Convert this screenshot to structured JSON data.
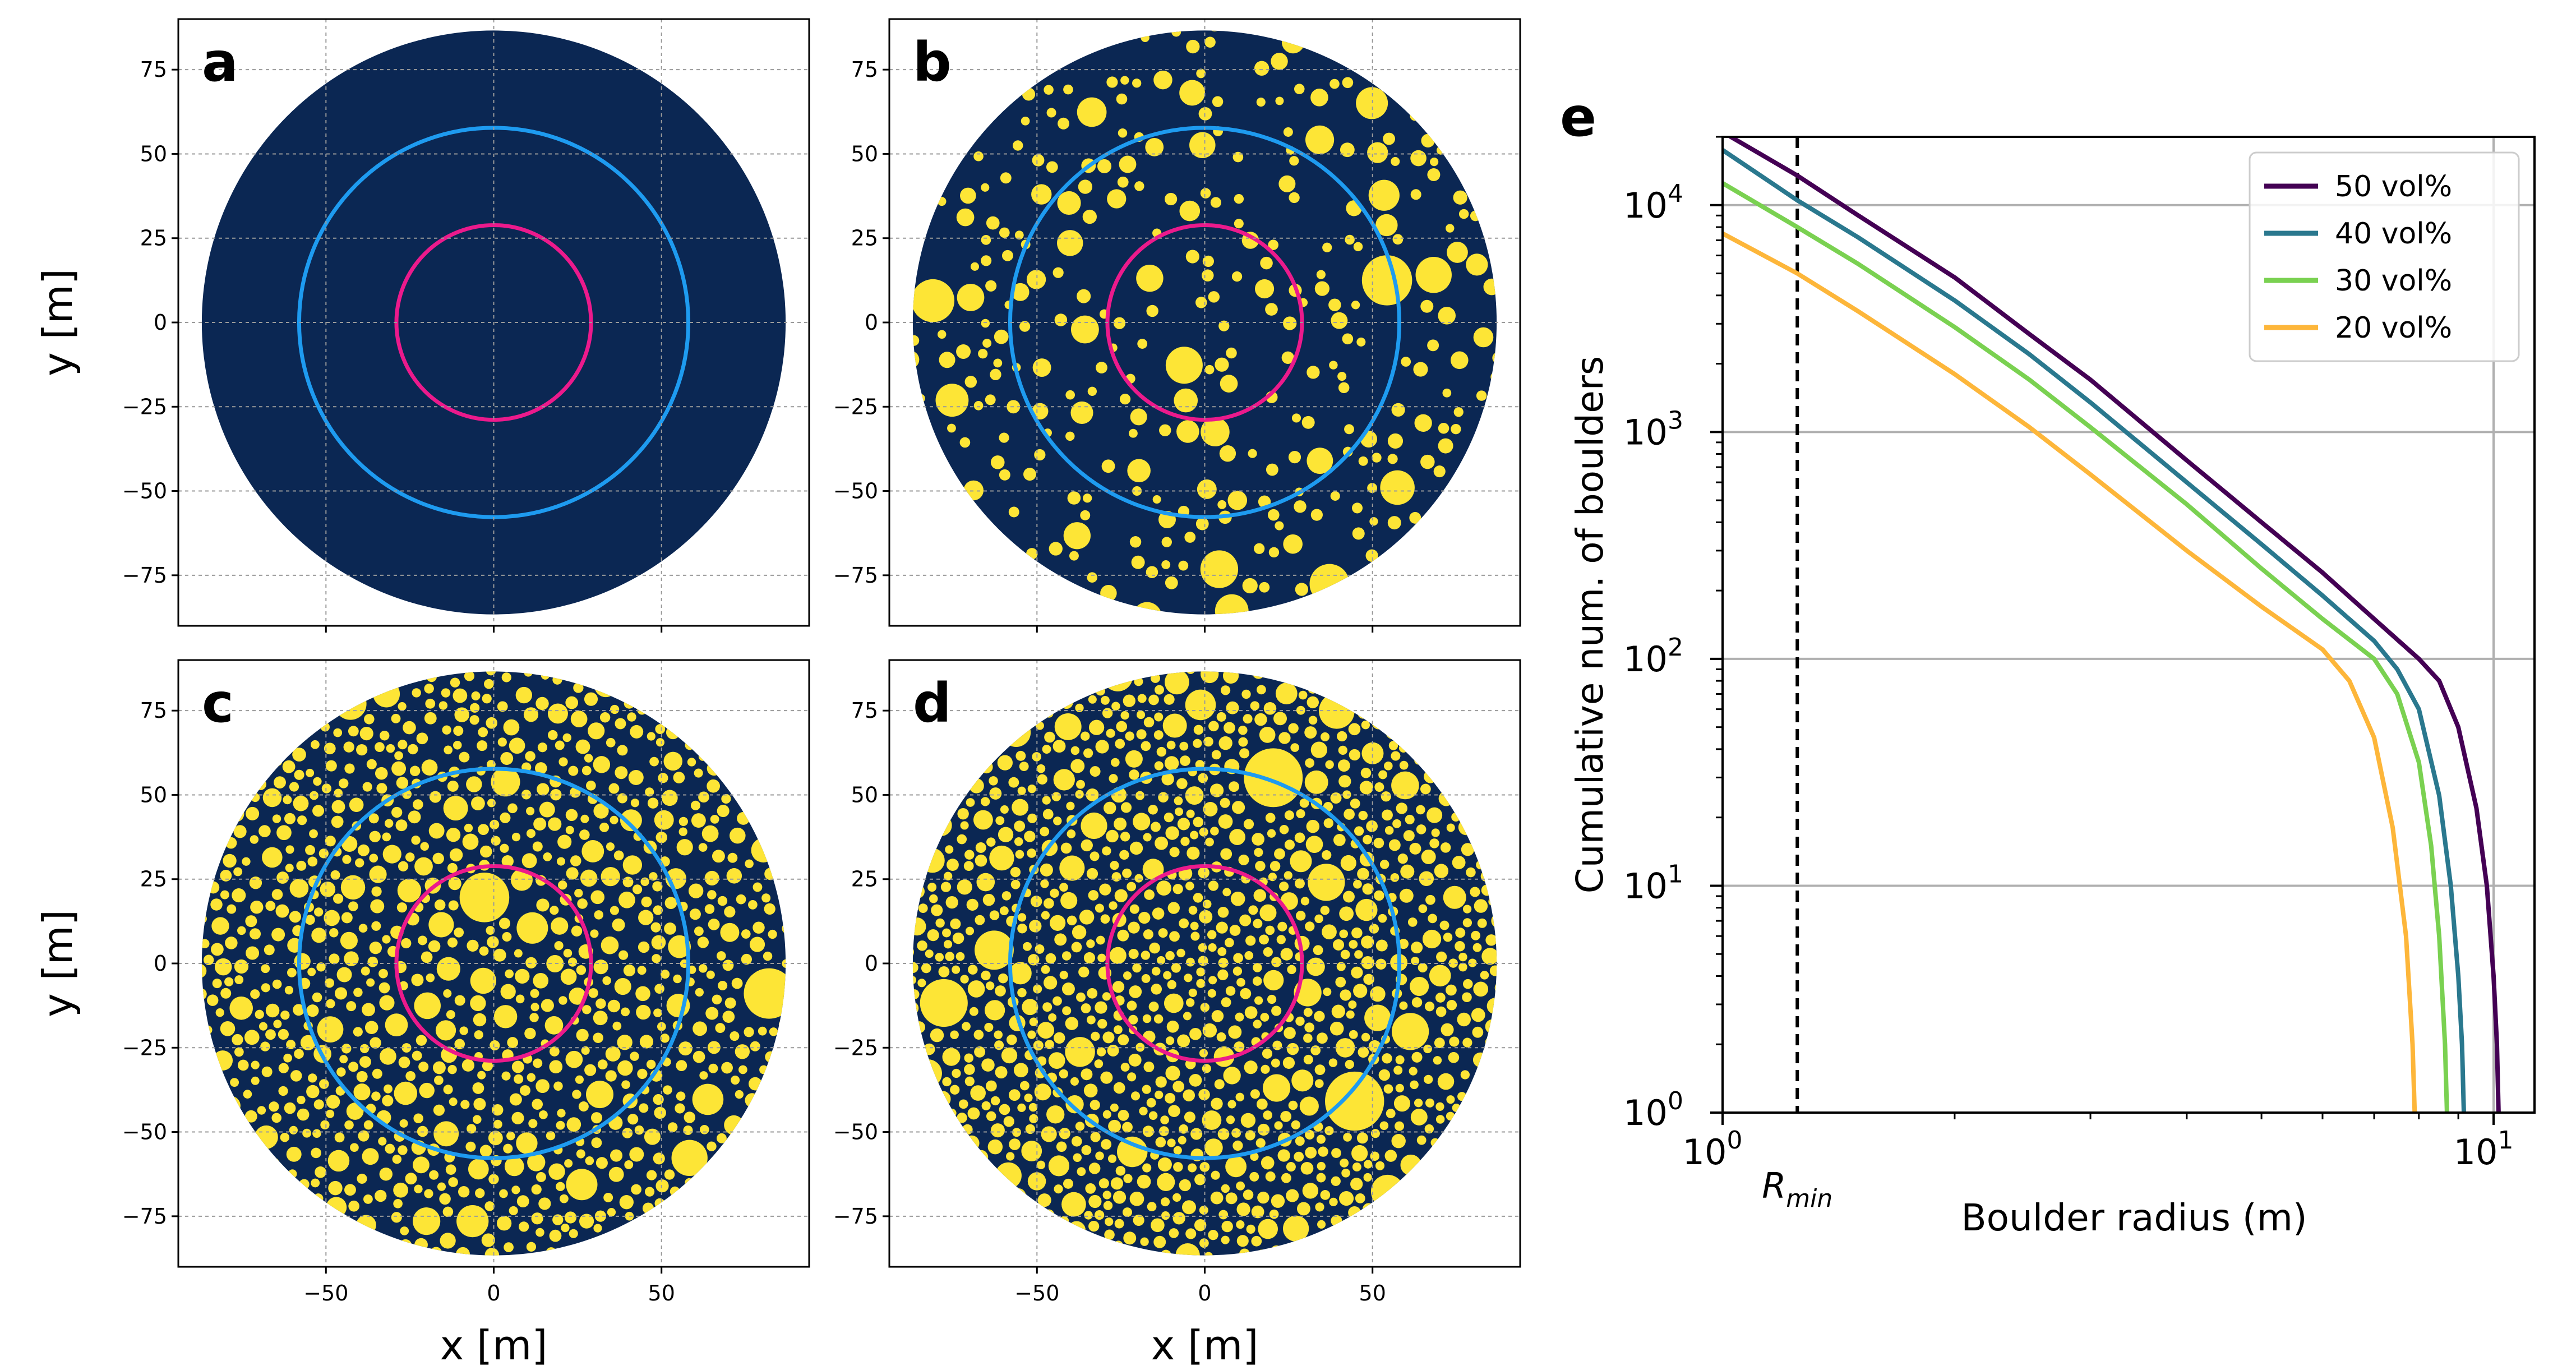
{
  "colors": {
    "background": "#0b2753",
    "boulder": "#fde536",
    "outer_contour": "#1e9bf0",
    "inner_contour": "#ec1a8c",
    "grid": "#9a9a9a",
    "rmin_line": "#000000"
  },
  "chart_data": [
    {
      "type": "scatter",
      "panel": "a",
      "title": "a",
      "xlabel": "",
      "ylabel": "y [m]",
      "xlim": [
        -94,
        94
      ],
      "ylim": [
        -90,
        90
      ],
      "xticks": [
        -50,
        0,
        50
      ],
      "xtick_labels": [],
      "yticks": [
        75,
        50,
        25,
        0,
        -25,
        -50,
        -75
      ],
      "ytick_labels": [
        "75",
        "50",
        "25",
        "0",
        "−25",
        "−50",
        "−75"
      ],
      "domain_radius_m": 87,
      "contours": [
        {
          "name": "outer",
          "radius_m": 58,
          "color": "#1e9bf0"
        },
        {
          "name": "inner",
          "radius_m": 29,
          "color": "#ec1a8c"
        }
      ],
      "boulder_fraction": 0,
      "grid": true
    },
    {
      "type": "scatter",
      "panel": "b",
      "title": "b",
      "xlabel": "",
      "ylabel": "",
      "xlim": [
        -94,
        94
      ],
      "ylim": [
        -90,
        90
      ],
      "xticks": [
        -50,
        0,
        50
      ],
      "xtick_labels": [],
      "yticks": [
        75,
        50,
        25,
        0,
        -25,
        -50,
        -75
      ],
      "ytick_labels": [
        "75",
        "50",
        "25",
        "0",
        "−25",
        "−50",
        "−75"
      ],
      "domain_radius_m": 87,
      "contours": [
        {
          "name": "outer",
          "radius_m": 58,
          "color": "#1e9bf0"
        },
        {
          "name": "inner",
          "radius_m": 29,
          "color": "#ec1a8c"
        }
      ],
      "boulder_fraction": 0.2,
      "grid": true
    },
    {
      "type": "scatter",
      "panel": "c",
      "title": "c",
      "xlabel": "x [m]",
      "ylabel": "y [m]",
      "xlim": [
        -94,
        94
      ],
      "ylim": [
        -90,
        90
      ],
      "xticks": [
        -50,
        0,
        50
      ],
      "xtick_labels": [
        "−50",
        "0",
        "50"
      ],
      "yticks": [
        75,
        50,
        25,
        0,
        -25,
        -50,
        -75
      ],
      "ytick_labels": [
        "75",
        "50",
        "25",
        "0",
        "−25",
        "−50",
        "−75"
      ],
      "domain_radius_m": 87,
      "contours": [
        {
          "name": "outer",
          "radius_m": 58,
          "color": "#1e9bf0"
        },
        {
          "name": "inner",
          "radius_m": 29,
          "color": "#ec1a8c"
        }
      ],
      "boulder_fraction": 0.4,
      "grid": true
    },
    {
      "type": "scatter",
      "panel": "d",
      "title": "d",
      "xlabel": "x [m]",
      "ylabel": "",
      "xlim": [
        -94,
        94
      ],
      "ylim": [
        -90,
        90
      ],
      "xticks": [
        -50,
        0,
        50
      ],
      "xtick_labels": [
        "−50",
        "0",
        "50"
      ],
      "yticks": [
        75,
        50,
        25,
        0,
        -25,
        -50,
        -75
      ],
      "ytick_labels": [
        "75",
        "50",
        "25",
        "0",
        "−25",
        "−50",
        "−75"
      ],
      "domain_radius_m": 87,
      "contours": [
        {
          "name": "outer",
          "radius_m": 58,
          "color": "#1e9bf0"
        },
        {
          "name": "inner",
          "radius_m": 29,
          "color": "#ec1a8c"
        }
      ],
      "boulder_fraction": 0.5,
      "grid": true
    },
    {
      "type": "line",
      "panel": "e",
      "title": "e",
      "xlabel": "Boulder radius (m)",
      "ylabel": "Cumulative num. of boulders",
      "xscale": "log",
      "yscale": "log",
      "xlim": [
        1,
        11.3
      ],
      "ylim": [
        1,
        20000
      ],
      "xticks": [
        1,
        10
      ],
      "xtick_labels": [
        {
          "base": "10",
          "exp": "0"
        },
        {
          "base": "10",
          "exp": "1"
        }
      ],
      "yticks": [
        1,
        10,
        100,
        1000,
        10000
      ],
      "ytick_labels": [
        {
          "base": "10",
          "exp": "0"
        },
        {
          "base": "10",
          "exp": "1"
        },
        {
          "base": "10",
          "exp": "2"
        },
        {
          "base": "10",
          "exp": "3"
        },
        {
          "base": "10",
          "exp": "4"
        }
      ],
      "grid": "y-major",
      "vline": {
        "x": 1.25,
        "label_base": "R",
        "label_sub": "min",
        "style": "dashed"
      },
      "legend_position": "top-right",
      "series": [
        {
          "name": "50 vol%",
          "color": "#440154",
          "x": [
            1.0,
            1.25,
            1.5,
            2.0,
            2.5,
            3.0,
            4.0,
            5.0,
            6.0,
            7.0,
            8.0,
            8.5,
            9.0,
            9.5,
            9.8,
            10.0,
            10.1,
            10.15
          ],
          "y": [
            21000,
            13500,
            9000,
            4800,
            2700,
            1700,
            750,
            400,
            240,
            150,
            100,
            80,
            50,
            22,
            10,
            4,
            2,
            1
          ]
        },
        {
          "name": "40 vol%",
          "color": "#2a788e",
          "x": [
            1.0,
            1.25,
            1.5,
            2.0,
            2.5,
            3.0,
            4.0,
            5.0,
            6.0,
            7.0,
            7.5,
            8.0,
            8.5,
            8.8,
            9.0,
            9.1,
            9.15
          ],
          "y": [
            17500,
            10500,
            7200,
            3800,
            2200,
            1350,
            600,
            320,
            190,
            120,
            90,
            60,
            25,
            10,
            4,
            2,
            1
          ]
        },
        {
          "name": "30 vol%",
          "color": "#7ad151",
          "x": [
            1.0,
            1.25,
            1.5,
            2.0,
            2.5,
            3.0,
            4.0,
            5.0,
            6.0,
            7.0,
            7.5,
            8.0,
            8.3,
            8.5,
            8.65,
            8.7
          ],
          "y": [
            12500,
            8000,
            5500,
            2900,
            1700,
            1050,
            480,
            250,
            150,
            100,
            70,
            35,
            15,
            6,
            2,
            1
          ]
        },
        {
          "name": "20 vol%",
          "color": "#fdb63a",
          "x": [
            1.0,
            1.25,
            1.5,
            2.0,
            2.5,
            3.0,
            4.0,
            5.0,
            6.0,
            6.5,
            7.0,
            7.4,
            7.7,
            7.85,
            7.9
          ],
          "y": [
            7500,
            5000,
            3400,
            1800,
            1050,
            650,
            300,
            170,
            110,
            80,
            45,
            18,
            6,
            2,
            1
          ]
        }
      ]
    }
  ]
}
